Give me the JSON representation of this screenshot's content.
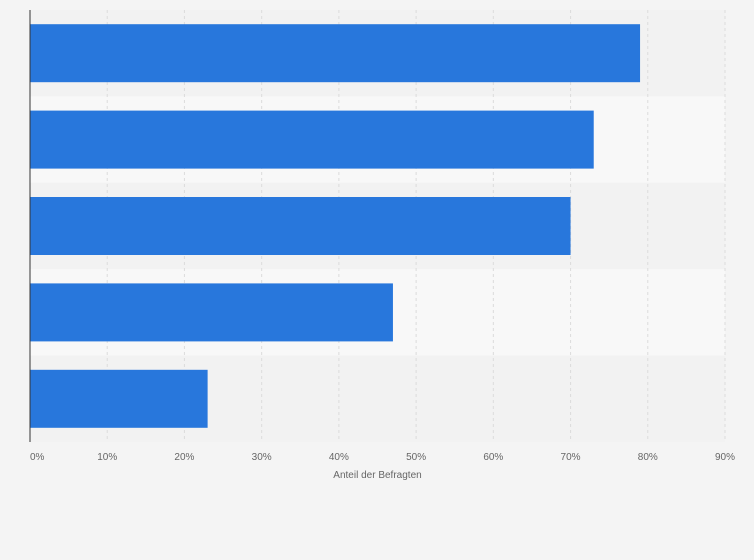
{
  "chart_data": {
    "type": "bar",
    "orientation": "horizontal",
    "title": "",
    "xlabel": "Anteil der Befragten",
    "ylabel": "",
    "categories": [
      "",
      "",
      "",
      "",
      ""
    ],
    "values": [
      79,
      73,
      70,
      47,
      23
    ],
    "xlim": [
      0,
      90
    ],
    "x_ticks": [
      "0%",
      "10%",
      "20%",
      "30%",
      "40%",
      "50%",
      "60%",
      "70%",
      "80%",
      "90%"
    ],
    "grid": true,
    "legend": "none",
    "colors": {
      "bar": "#2877dc",
      "band_dark": "#f2f2f2",
      "band_light": "#f8f8f8",
      "grid": "#dcdcdc",
      "axis": "#333333"
    }
  }
}
